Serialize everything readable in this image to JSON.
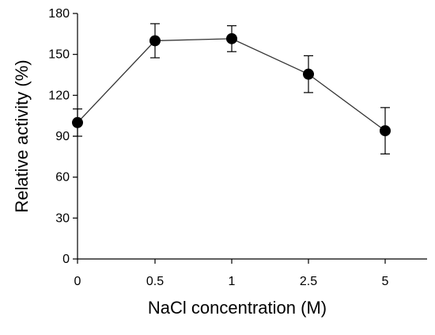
{
  "chart_data": {
    "type": "line",
    "title": "",
    "xlabel": "NaCl concentration (M)",
    "ylabel": "Relative activity (%)",
    "categories": [
      "0",
      "0.5",
      "1",
      "2.5",
      "5"
    ],
    "series": [
      {
        "values": [
          100,
          160,
          161.5,
          135.5,
          94
        ],
        "error": [
          10,
          12.5,
          9.5,
          13.5,
          17
        ]
      }
    ],
    "ylim": [
      0,
      180
    ],
    "yticks": [
      "0",
      "30",
      "60",
      "90",
      "120",
      "150",
      "180"
    ],
    "grid": false,
    "legend": "none",
    "colors": {
      "line": "#333333",
      "marker": "#000000",
      "axis": "#000000"
    }
  }
}
